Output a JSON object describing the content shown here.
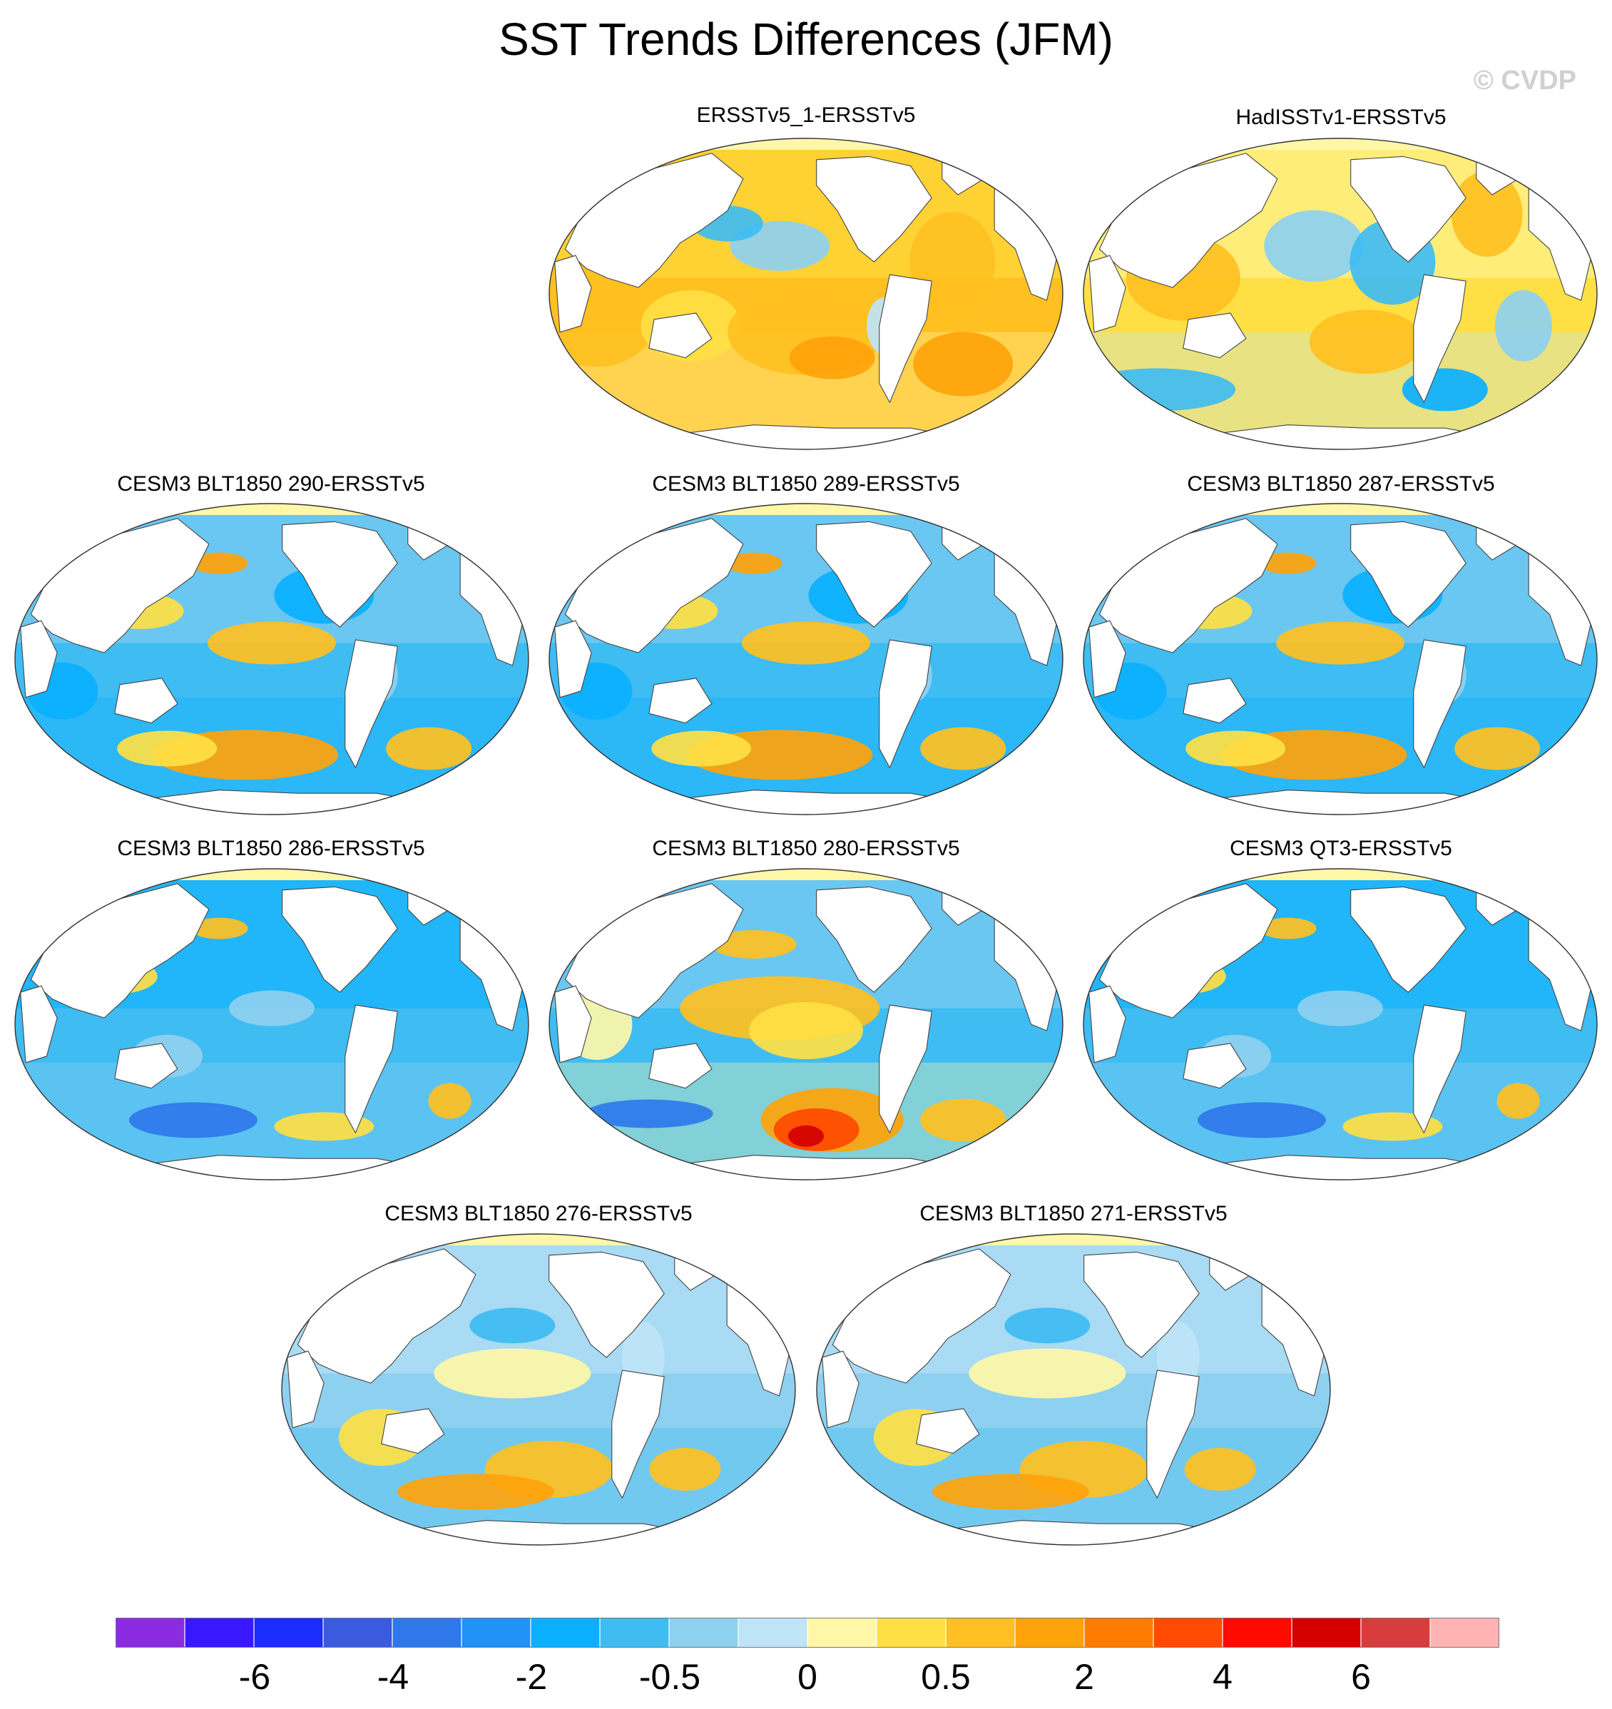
{
  "figure": {
    "title": "SST Trends Differences (JFM)",
    "copyright": "© CVDP"
  },
  "panels": [
    {
      "title": "ERSSTv5_1-ERSSTv5",
      "pattern": "warm"
    },
    {
      "title": "HadISSTv1-ERSSTv5",
      "pattern": "mixed-warm"
    },
    {
      "title": "CESM3 BLT1850 290-ERSSTv5",
      "pattern": "cool-south-warm"
    },
    {
      "title": "CESM3 BLT1850 289-ERSSTv5",
      "pattern": "cool-south-warm"
    },
    {
      "title": "CESM3 BLT1850 287-ERSSTv5",
      "pattern": "cool-south-warm"
    },
    {
      "title": "CESM3 BLT1850 286-ERSSTv5",
      "pattern": "cool"
    },
    {
      "title": "CESM3 BLT1850 280-ERSSTv5",
      "pattern": "strong-south-warm"
    },
    {
      "title": "CESM3 QT3-ERSSTv5",
      "pattern": "cool"
    },
    {
      "title": "CESM3 BLT1850 276-ERSSTv5",
      "pattern": "mixed-south-warm"
    },
    {
      "title": "CESM3 BLT1850 271-ERSSTv5",
      "pattern": "mixed-south-warm"
    }
  ],
  "colorbar": {
    "colors": [
      "#8a2be2",
      "#3a18ff",
      "#1a2cff",
      "#3a5be0",
      "#2e78ec",
      "#2192f8",
      "#0ab0ff",
      "#3fbcf2",
      "#8ed0f0",
      "#bfe4f7",
      "#fff7a8",
      "#ffe044",
      "#ffc021",
      "#ffa30a",
      "#ff7c00",
      "#ff4a00",
      "#ff0a00",
      "#d40000",
      "#d83c3c",
      "#ffb3b3"
    ],
    "labels": [
      "-6",
      "-4",
      "-2",
      "-0.5",
      "0",
      "0.5",
      "2",
      "4",
      "6"
    ]
  }
}
